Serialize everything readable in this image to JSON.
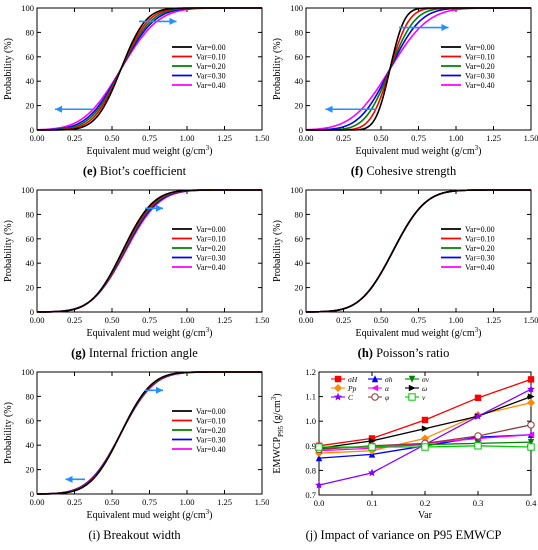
{
  "layout": {
    "width": 538,
    "height": 550
  },
  "chart_data": [
    {
      "type": "line",
      "id": "e",
      "caption_letter": "(e)",
      "caption_text": " Biot’s coefficient",
      "caption_letter_bold": true,
      "xlabel": "Equivalent mud weight (g/cm3)",
      "ylabel": "Probability (%)",
      "xlim": [
        0,
        1.5
      ],
      "ylim": [
        0,
        100
      ],
      "xticks": [
        "0.00",
        "0.25",
        "0.50",
        "0.75",
        "1.00",
        "1.25",
        "1.50"
      ],
      "yticks": [
        "0",
        "20",
        "40",
        "60",
        "80",
        "100"
      ],
      "legend_position": "center-right",
      "cdf": {
        "mu": 0.56,
        "sigma": [
          0.13,
          0.145,
          0.16,
          0.175,
          0.195
        ]
      },
      "series": [
        {
          "name": "Var=0.00",
          "color": "#000000"
        },
        {
          "name": "Var=0.10",
          "color": "#ff0000"
        },
        {
          "name": "Var=0.20",
          "color": "#008000"
        },
        {
          "name": "Var=0.30",
          "color": "#0000ff"
        },
        {
          "name": "Var=0.40",
          "color": "#ff00ff"
        }
      ],
      "arrows": [
        {
          "direction": "right",
          "x": [
            0.68,
            0.93
          ],
          "y": 89
        },
        {
          "direction": "left",
          "x": [
            0.12,
            0.37
          ],
          "y": 17
        }
      ]
    },
    {
      "type": "line",
      "id": "f",
      "caption_letter": "(f)",
      "caption_text": " Cohesive strength",
      "caption_letter_bold": true,
      "xlabel": "Equivalent mud weight (g/cm3)",
      "ylabel": "Probability (%)",
      "xlim": [
        0,
        1.5
      ],
      "ylim": [
        0,
        100
      ],
      "xticks": [
        "0.00",
        "0.25",
        "0.50",
        "0.75",
        "1.00",
        "1.25",
        "1.50"
      ],
      "yticks": [
        "0",
        "20",
        "40",
        "60",
        "80",
        "100"
      ],
      "legend_position": "center-right",
      "cdf": {
        "mu": 0.56,
        "sigma": [
          0.075,
          0.1,
          0.13,
          0.16,
          0.2
        ]
      },
      "series": [
        {
          "name": "Var=0.00",
          "color": "#000000"
        },
        {
          "name": "Var=0.10",
          "color": "#ff0000"
        },
        {
          "name": "Var=0.20",
          "color": "#008000"
        },
        {
          "name": "Var=0.30",
          "color": "#0000ff"
        },
        {
          "name": "Var=0.40",
          "color": "#ff00ff"
        }
      ],
      "arrows": [
        {
          "direction": "right",
          "x": [
            0.62,
            0.95
          ],
          "y": 84
        },
        {
          "direction": "left",
          "x": [
            0.13,
            0.47
          ],
          "y": 17
        }
      ]
    },
    {
      "type": "line",
      "id": "g",
      "caption_letter": "(g)",
      "caption_text": " Internal friction angle",
      "caption_letter_bold": true,
      "xlabel": "Equivalent mud weight (g/cm3)",
      "ylabel": "Probability (%)",
      "xlim": [
        0,
        1.5
      ],
      "ylim": [
        0,
        100
      ],
      "xticks": [
        "0.00",
        "0.25",
        "0.50",
        "0.75",
        "1.00",
        "1.25",
        "1.50"
      ],
      "yticks": [
        "0",
        "20",
        "40",
        "60",
        "80",
        "100"
      ],
      "legend_position": "center-right",
      "cdf": {
        "mu": 0.57,
        "sigma": [
          0.16,
          0.163,
          0.167,
          0.171,
          0.175
        ],
        "shift": [
          0,
          0.005,
          0.01,
          0.015,
          0.02
        ]
      },
      "series": [
        {
          "name": "Var=0.00",
          "color": "#000000"
        },
        {
          "name": "Var=0.10",
          "color": "#ff0000"
        },
        {
          "name": "Var=0.20",
          "color": "#008000"
        },
        {
          "name": "Var=0.30",
          "color": "#0000ff"
        },
        {
          "name": "Var=0.40",
          "color": "#ff00ff"
        }
      ],
      "arrows": [
        {
          "direction": "right",
          "x": [
            0.72,
            0.84
          ],
          "y": 85
        }
      ]
    },
    {
      "type": "line",
      "id": "h",
      "caption_letter": "(h)",
      "caption_text": " Poisson’s ratio",
      "caption_letter_bold": true,
      "xlabel": "Equivalent mud weight (g/cm3)",
      "ylabel": "Probability (%)",
      "xlim": [
        0,
        1.5
      ],
      "ylim": [
        0,
        100
      ],
      "xticks": [
        "0.00",
        "0.25",
        "0.50",
        "0.75",
        "1.00",
        "1.25",
        "1.50"
      ],
      "yticks": [
        "0",
        "20",
        "40",
        "60",
        "80",
        "100"
      ],
      "legend_position": "center-right",
      "cdf": {
        "mu": 0.58,
        "sigma": [
          0.17,
          0.17,
          0.17,
          0.17,
          0.17
        ]
      },
      "series": [
        {
          "name": "Var=0.00",
          "color": "#000000"
        },
        {
          "name": "Var=0.10",
          "color": "#ff0000"
        },
        {
          "name": "Var=0.20",
          "color": "#008000"
        },
        {
          "name": "Var=0.30",
          "color": "#0000ff"
        },
        {
          "name": "Var=0.40",
          "color": "#ff00ff"
        }
      ],
      "arrows": []
    },
    {
      "type": "line",
      "id": "i",
      "caption_letter": "(i)",
      "caption_text": " Breakout width",
      "caption_letter_bold": false,
      "xlabel": "Equivalent mud weight (g/cm3)",
      "ylabel": "Probability (%)",
      "xlim": [
        0,
        1.5
      ],
      "ylim": [
        0,
        100
      ],
      "xticks": [
        "0.00",
        "0.25",
        "0.50",
        "0.75",
        "1.00",
        "1.25",
        "1.50"
      ],
      "yticks": [
        "0",
        "20",
        "40",
        "60",
        "80",
        "100"
      ],
      "legend_position": "center-right",
      "cdf": {
        "mu": 0.56,
        "sigma": [
          0.16,
          0.163,
          0.166,
          0.169,
          0.172
        ]
      },
      "series": [
        {
          "name": "Var=0.00",
          "color": "#000000"
        },
        {
          "name": "Var=0.10",
          "color": "#ff0000"
        },
        {
          "name": "Var=0.20",
          "color": "#008000"
        },
        {
          "name": "Var=0.30",
          "color": "#0000ff"
        },
        {
          "name": "Var=0.40",
          "color": "#ff00ff"
        }
      ],
      "arrows": [
        {
          "direction": "right",
          "x": [
            0.72,
            0.84
          ],
          "y": 85
        },
        {
          "direction": "left",
          "x": [
            0.19,
            0.32
          ],
          "y": 12
        }
      ]
    },
    {
      "type": "line",
      "id": "j",
      "caption_letter": "(j)",
      "caption_text": " Impact of variance on P95 EMWCP",
      "caption_letter_bold": false,
      "xlabel": "Var",
      "ylabel": "EMWCP P95 (g/cm3)",
      "xlim": [
        0,
        0.4
      ],
      "ylim": [
        0.7,
        1.2
      ],
      "x": [
        0,
        0.1,
        0.2,
        0.3,
        0.4
      ],
      "xticks": [
        "0.0",
        "0.1",
        "0.2",
        "0.3",
        "0.4"
      ],
      "yticks": [
        "0.7",
        "0.8",
        "0.9",
        "1.0",
        "1.1",
        "1.2"
      ],
      "legend_position": "top-left",
      "series": [
        {
          "name": "σH",
          "color": "#ff0000",
          "marker": "square",
          "values": [
            0.9,
            0.93,
            1.005,
            1.095,
            1.17
          ]
        },
        {
          "name": "σh",
          "color": "#0000ff",
          "marker": "triangle-up",
          "values": [
            0.85,
            0.865,
            0.9,
            0.935,
            0.945
          ]
        },
        {
          "name": "σv",
          "color": "#008000",
          "marker": "triangle-down",
          "values": [
            0.89,
            0.895,
            0.905,
            0.91,
            0.915
          ]
        },
        {
          "name": "Pp",
          "color": "#ff8c00",
          "marker": "diamond",
          "values": [
            0.87,
            0.88,
            0.93,
            1.025,
            1.075
          ]
        },
        {
          "name": "α",
          "color": "#ff00ff",
          "marker": "triangle-left",
          "values": [
            0.88,
            0.89,
            0.91,
            0.93,
            0.945
          ]
        },
        {
          "name": "ω",
          "color": "#000000",
          "marker": "triangle-right",
          "values": [
            0.89,
            0.92,
            0.97,
            1.02,
            1.1
          ]
        },
        {
          "name": "C",
          "color": "#8b00ff",
          "marker": "star",
          "values": [
            0.74,
            0.79,
            0.905,
            1.02,
            1.13
          ]
        },
        {
          "name": "φ",
          "color": "#8b3a3a",
          "marker": "circle-open",
          "values": [
            0.885,
            0.9,
            0.91,
            0.94,
            0.985
          ]
        },
        {
          "name": "v",
          "color": "#00cc00",
          "marker": "square-open",
          "values": [
            0.895,
            0.895,
            0.895,
            0.9,
            0.895
          ]
        }
      ]
    }
  ]
}
